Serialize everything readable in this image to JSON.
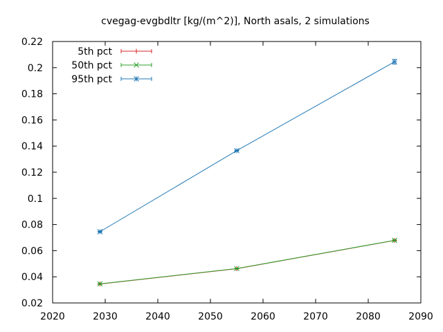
{
  "chart_data": {
    "type": "line",
    "title": "cvegag-evgbdltr [kg/(m^2)], North asals, 2 simulations",
    "xlabel": "",
    "ylabel": "",
    "xlim": [
      2020,
      2090
    ],
    "ylim": [
      0.02,
      0.22
    ],
    "xticks": [
      2020,
      2030,
      2040,
      2050,
      2060,
      2070,
      2080,
      2090
    ],
    "yticks": [
      0.02,
      0.04,
      0.06,
      0.08,
      0.1,
      0.12,
      0.14,
      0.16,
      0.18,
      0.2,
      0.22
    ],
    "xtick_labels": [
      "2020",
      "2030",
      "2040",
      "2050",
      "2060",
      "2070",
      "2080",
      "2090"
    ],
    "ytick_labels": [
      "0.02",
      "0.04",
      "0.06",
      "0.08",
      "0.1",
      "0.12",
      "0.14",
      "0.16",
      "0.18",
      "0.2",
      "0.22"
    ],
    "grid": false,
    "legend_position": "top-left",
    "x": [
      2029,
      2055,
      2085
    ],
    "series": [
      {
        "name": "5th pct",
        "color": "#d62728",
        "marker": "plus",
        "values": [
          0.0345,
          0.0462,
          0.0678
        ],
        "err": [
          0.0003,
          0.0003,
          0.0004
        ]
      },
      {
        "name": "50th pct",
        "color": "#2ca02c",
        "marker": "cross",
        "values": [
          0.0346,
          0.0463,
          0.0679
        ],
        "err": [
          0.0003,
          0.0003,
          0.0004
        ]
      },
      {
        "name": "95th pct",
        "color": "#1f77b4",
        "marker": "star",
        "values": [
          0.0745,
          0.1365,
          0.2045
        ],
        "err": [
          0.0004,
          0.0004,
          0.0018
        ]
      }
    ]
  }
}
